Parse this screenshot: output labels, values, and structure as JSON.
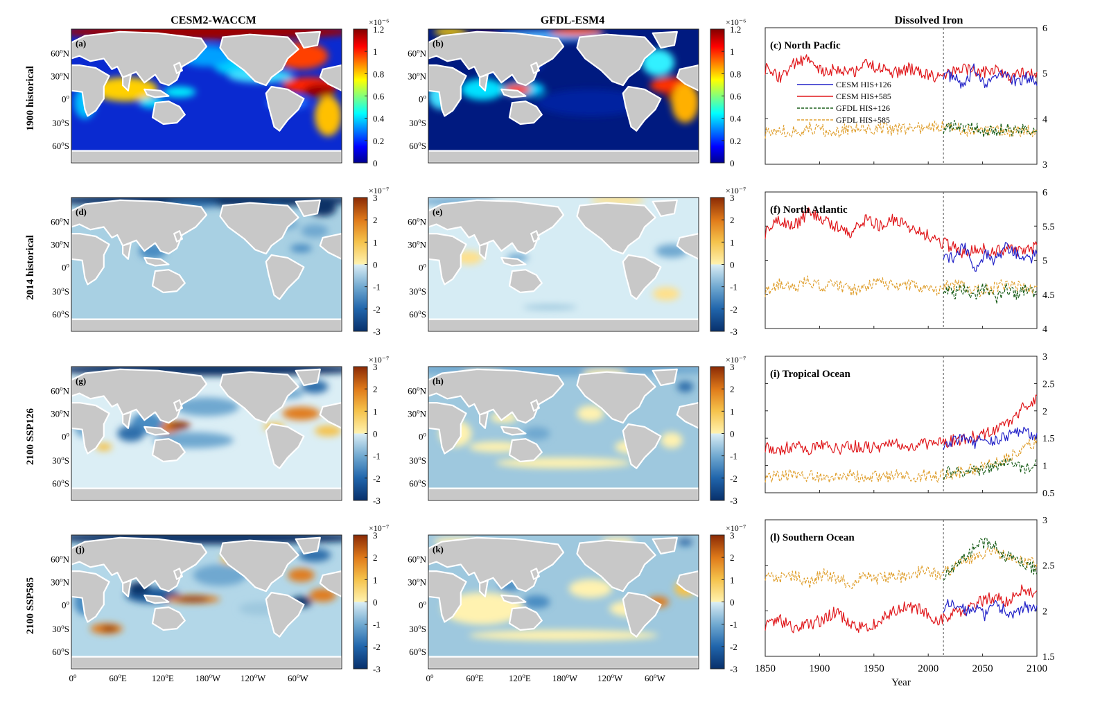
{
  "figure": {
    "col_titles": [
      "CESM2-WACCM",
      "GFDL-ESM4",
      "Dissolved Iron"
    ],
    "row_labels": [
      "1900 historical",
      "2014 historical",
      "2100 SSP126",
      "2100 SSP585"
    ],
    "map_panel_letters": [
      [
        "(a)",
        "(b)"
      ],
      [
        "(d)",
        "(e)"
      ],
      [
        "(g)",
        "(h)"
      ],
      [
        "(j)",
        "(k)"
      ]
    ],
    "map_lat_ticks": [
      "60°N",
      "30°N",
      "0°",
      "30°S",
      "60°S"
    ],
    "map_lon_ticks": [
      "0°",
      "60°E",
      "120°E",
      "180°W",
      "120°W",
      "60°W"
    ],
    "colorbars": [
      {
        "exponent": "×10⁻⁶",
        "ticks": [
          "1.2",
          "1",
          "0.8",
          "0.6",
          "0.4",
          "0.2",
          "0"
        ],
        "colormap": "jet"
      },
      {
        "exponent": "×10⁻⁷",
        "ticks": [
          "3",
          "2",
          "1",
          "0",
          "-1",
          "-2",
          "-3"
        ],
        "colormap": "diverging"
      },
      {
        "exponent": "×10⁻⁷",
        "ticks": [
          "3",
          "2",
          "1",
          "0",
          "-1",
          "-2",
          "-3"
        ],
        "colormap": "diverging"
      },
      {
        "exponent": "×10⁻⁷",
        "ticks": [
          "3",
          "2",
          "1",
          "0",
          "-1",
          "-2",
          "-3"
        ],
        "colormap": "diverging"
      }
    ],
    "legend": [
      "CESM HIS+126",
      "CESM HIS+585",
      "GFDL HIS+126",
      "GFDL HIS+585"
    ],
    "colors": {
      "cesm126": "#2323c8",
      "cesm585": "#e0181c",
      "gfdl126": "#1a5e1a",
      "gfdl585": "#e0a030",
      "land": "#c8c8c8",
      "coast": "#ffffff"
    }
  },
  "chart_data": [
    {
      "type": "line",
      "title": "(c) North Pacfic",
      "xlabel": "",
      "ylabel": "",
      "ylim": [
        3,
        6
      ],
      "yticks": [
        "3",
        "4",
        "5",
        "6"
      ],
      "xlim": [
        1850,
        2100
      ],
      "split_year": 2014,
      "series": [
        {
          "name": "CESM HIS+126",
          "x_start": 2014,
          "x_end": 2100,
          "values": [
            5.0,
            4.9,
            4.7,
            5.1,
            4.8,
            4.9,
            5.0,
            4.8,
            4.9,
            4.8
          ]
        },
        {
          "name": "CESM HIS+585",
          "x_start": 1850,
          "x_end": 2100,
          "values": [
            5.1,
            4.9,
            5.2,
            5.3,
            5.0,
            5.1,
            5.0,
            5.2,
            5.1,
            5.0,
            5.1,
            5.0,
            4.9,
            5.0,
            5.1,
            5.0,
            5.1,
            4.9,
            5.0,
            5.0
          ]
        },
        {
          "name": "GFDL HIS+126",
          "x_start": 2014,
          "x_end": 2100,
          "values": [
            3.8,
            3.85,
            3.75,
            3.8,
            3.7,
            3.75,
            3.8,
            3.7,
            3.8,
            3.75
          ]
        },
        {
          "name": "GFDL HIS+585",
          "x_start": 1850,
          "x_end": 2100,
          "values": [
            3.7,
            3.75,
            3.7,
            3.8,
            3.75,
            3.7,
            3.8,
            3.75,
            3.8,
            3.75,
            3.8,
            3.8,
            3.85,
            3.8,
            3.75,
            3.7,
            3.75,
            3.7,
            3.75,
            3.7
          ]
        }
      ]
    },
    {
      "type": "line",
      "title": "(f) North Atlantic",
      "xlabel": "",
      "ylabel": "",
      "ylim": [
        4,
        6
      ],
      "yticks": [
        "4",
        "4.5",
        "5",
        "5.5",
        "6"
      ],
      "xlim": [
        1850,
        2100
      ],
      "split_year": 2014,
      "series": [
        {
          "name": "CESM HIS+126",
          "x_start": 2014,
          "x_end": 2100,
          "values": [
            5.1,
            5.0,
            5.2,
            4.9,
            5.1,
            5.0,
            5.2,
            5.1,
            5.0,
            5.1
          ]
        },
        {
          "name": "CESM HIS+585",
          "x_start": 1850,
          "x_end": 2100,
          "values": [
            5.4,
            5.6,
            5.5,
            5.7,
            5.6,
            5.5,
            5.4,
            5.6,
            5.5,
            5.6,
            5.5,
            5.4,
            5.3,
            5.2,
            5.1,
            5.2,
            5.1,
            5.2,
            5.1,
            5.2
          ]
        },
        {
          "name": "GFDL HIS+126",
          "x_start": 2014,
          "x_end": 2100,
          "values": [
            4.6,
            4.5,
            4.6,
            4.5,
            4.6,
            4.4,
            4.6,
            4.5,
            4.6,
            4.5
          ]
        },
        {
          "name": "GFDL HIS+585",
          "x_start": 1850,
          "x_end": 2100,
          "values": [
            4.55,
            4.65,
            4.6,
            4.7,
            4.6,
            4.65,
            4.55,
            4.6,
            4.7,
            4.6,
            4.65,
            4.6,
            4.55,
            4.65,
            4.6,
            4.55,
            4.6,
            4.65,
            4.6,
            4.6
          ]
        }
      ]
    },
    {
      "type": "line",
      "title": "(i) Tropical Ocean",
      "xlabel": "",
      "ylabel": "",
      "ylim": [
        0.5,
        3
      ],
      "yticks": [
        "0.5",
        "1",
        "1.5",
        "2",
        "2.5",
        "3"
      ],
      "xlim": [
        1850,
        2100
      ],
      "split_year": 2014,
      "series": [
        {
          "name": "CESM HIS+126",
          "x_start": 2014,
          "x_end": 2100,
          "values": [
            1.4,
            1.45,
            1.5,
            1.4,
            1.5,
            1.45,
            1.55,
            1.6,
            1.6,
            1.55
          ]
        },
        {
          "name": "CESM HIS+585",
          "x_start": 1850,
          "x_end": 2100,
          "values": [
            1.35,
            1.3,
            1.35,
            1.3,
            1.35,
            1.3,
            1.35,
            1.35,
            1.3,
            1.4,
            1.35,
            1.4,
            1.4,
            1.45,
            1.5,
            1.55,
            1.65,
            1.8,
            2.05,
            2.25
          ]
        },
        {
          "name": "GFDL HIS+126",
          "x_start": 2014,
          "x_end": 2100,
          "values": [
            0.85,
            0.9,
            0.85,
            0.9,
            0.95,
            1.0,
            1.05,
            1.0,
            0.95,
            1.0
          ]
        },
        {
          "name": "GFDL HIS+585",
          "x_start": 1850,
          "x_end": 2100,
          "values": [
            0.8,
            0.78,
            0.82,
            0.8,
            0.78,
            0.8,
            0.82,
            0.8,
            0.78,
            0.82,
            0.8,
            0.82,
            0.8,
            0.85,
            0.9,
            0.95,
            1.05,
            1.15,
            1.3,
            1.45
          ]
        }
      ]
    },
    {
      "type": "line",
      "title": "(l) Southern Ocean",
      "xlabel": "Year",
      "ylabel": "",
      "ylim": [
        1.5,
        3
      ],
      "yticks": [
        "1.5",
        "2",
        "2.5",
        "3"
      ],
      "xticks": [
        "1850",
        "1900",
        "1950",
        "2000",
        "2050",
        "2100"
      ],
      "xlim": [
        1850,
        2100
      ],
      "split_year": 2014,
      "series": [
        {
          "name": "CESM HIS+126",
          "x_start": 2014,
          "x_end": 2100,
          "values": [
            2.05,
            2.1,
            2.0,
            2.05,
            1.95,
            2.05,
            2.0,
            1.95,
            2.05,
            2.0
          ]
        },
        {
          "name": "CESM HIS+585",
          "x_start": 1850,
          "x_end": 2100,
          "values": [
            1.85,
            1.9,
            1.8,
            1.85,
            1.9,
            2.0,
            1.85,
            1.8,
            1.9,
            2.0,
            2.05,
            2.0,
            1.9,
            1.95,
            2.0,
            2.1,
            2.15,
            2.1,
            2.25,
            2.2
          ]
        },
        {
          "name": "GFDL HIS+126",
          "x_start": 2014,
          "x_end": 2100,
          "values": [
            2.4,
            2.5,
            2.6,
            2.7,
            2.75,
            2.7,
            2.6,
            2.55,
            2.5,
            2.45
          ]
        },
        {
          "name": "GFDL HIS+585",
          "x_start": 1850,
          "x_end": 2100,
          "values": [
            2.4,
            2.35,
            2.4,
            2.3,
            2.4,
            2.35,
            2.3,
            2.4,
            2.35,
            2.4,
            2.35,
            2.45,
            2.4,
            2.45,
            2.55,
            2.6,
            2.65,
            2.6,
            2.55,
            2.5
          ]
        }
      ]
    }
  ]
}
